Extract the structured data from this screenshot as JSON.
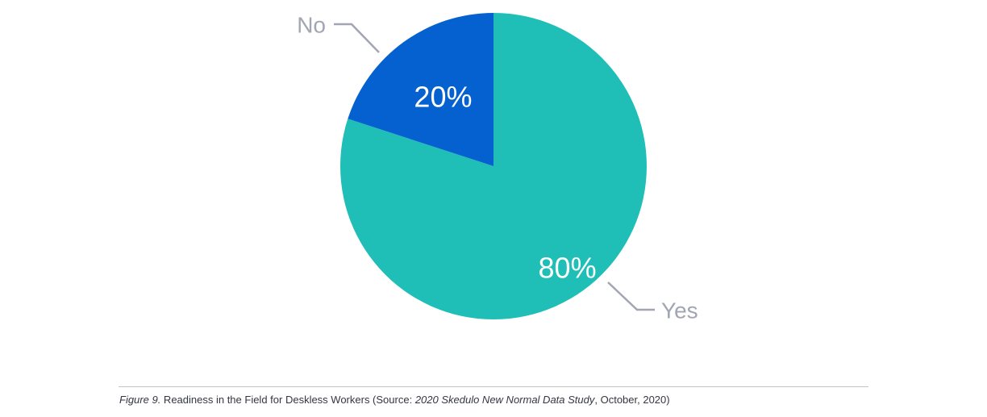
{
  "chart_data": {
    "type": "pie",
    "title": "",
    "slices": [
      {
        "label": "Yes",
        "value": 80,
        "value_label": "80%",
        "color": "#1fbfb8"
      },
      {
        "label": "No",
        "value": 20,
        "value_label": "20%",
        "color": "#0461cf"
      }
    ],
    "start_angle": "12 o'clock",
    "direction": "clockwise",
    "legend": "none"
  },
  "caption": {
    "figure_label": "Figure 9.",
    "text_before_source": " Readiness in the Field for Deskless Workers (Source: ",
    "source_title": "2020 Skedulo New Normal Data Study",
    "text_after_source": ", October, 2020)"
  },
  "colors": {
    "label_gray": "#a2a6b2",
    "divider": "#bfc2c8"
  }
}
